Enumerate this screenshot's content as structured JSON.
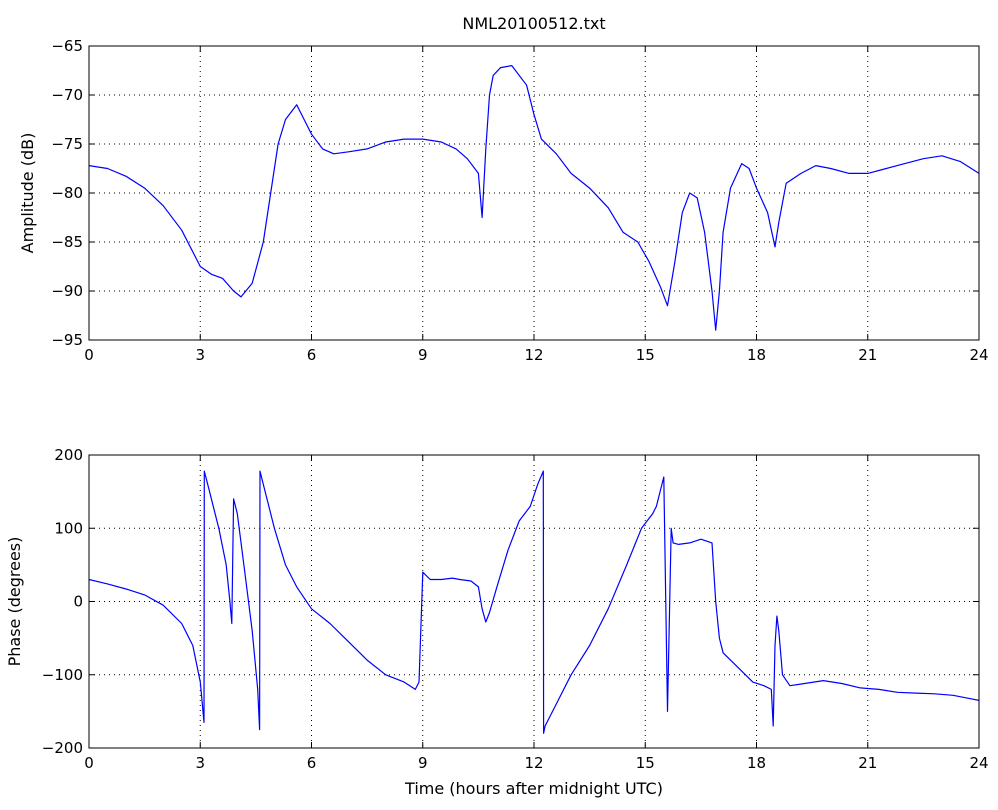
{
  "figure": {
    "title": "NML20100512.txt"
  },
  "chart_data": [
    {
      "type": "line",
      "title": "NML20100512.txt",
      "xlabel": "",
      "ylabel": "Amplitude (dB)",
      "xlim": [
        0,
        24
      ],
      "ylim": [
        -95,
        -65
      ],
      "xticks": [
        "0",
        "3",
        "6",
        "9",
        "12",
        "15",
        "18",
        "21",
        "24"
      ],
      "yticks": [
        "-95",
        "-90",
        "-85",
        "-80",
        "-75",
        "-70",
        "-65"
      ],
      "grid": true,
      "line_color": "#0000ff",
      "series": [
        {
          "x": [
            0,
            0.5,
            1,
            1.5,
            2,
            2.5,
            3,
            3.3,
            3.6,
            3.9,
            4.1,
            4.4,
            4.7,
            4.9,
            5.1,
            5.3,
            5.6,
            5.8,
            6.0,
            6.3,
            6.6,
            7.0,
            7.5,
            8.0,
            8.5,
            9.0,
            9.5,
            9.9,
            10.2,
            10.5,
            10.6,
            10.7,
            10.8,
            10.9,
            11.1,
            11.4,
            11.8,
            12.0,
            12.2,
            12.6,
            13.0,
            13.5,
            14.0,
            14.4,
            14.8,
            15.1,
            15.4,
            15.6,
            15.8,
            16.0,
            16.2,
            16.4,
            16.6,
            16.8,
            16.9,
            17.0,
            17.1,
            17.3,
            17.6,
            17.8,
            18.0,
            18.3,
            18.5,
            18.6,
            18.8,
            19.2,
            19.6,
            20.0,
            20.5,
            21.0,
            21.5,
            22.0,
            22.5,
            23.0,
            23.5,
            24.0
          ],
          "y": [
            -77.2,
            -77.5,
            -78.3,
            -79.5,
            -81.3,
            -83.8,
            -87.5,
            -88.3,
            -88.7,
            -90.0,
            -90.6,
            -89.2,
            -85.0,
            -80.0,
            -75.0,
            -72.5,
            -71.0,
            -72.5,
            -74.0,
            -75.5,
            -76.0,
            -75.8,
            -75.5,
            -74.8,
            -74.5,
            -74.5,
            -74.8,
            -75.5,
            -76.5,
            -78.0,
            -82.5,
            -75.5,
            -70.0,
            -68.0,
            -67.2,
            -67.0,
            -69.0,
            -72.0,
            -74.5,
            -76.0,
            -78.0,
            -79.5,
            -81.5,
            -84.0,
            -85.0,
            -87.0,
            -89.5,
            -91.5,
            -87.0,
            -82.0,
            -80.0,
            -80.5,
            -84.0,
            -90.0,
            -94.0,
            -90.0,
            -84.0,
            -79.5,
            -77.0,
            -77.5,
            -79.5,
            -82.0,
            -85.5,
            -83.0,
            -79.0,
            -78.0,
            -77.2,
            -77.5,
            -78.0,
            -78.0,
            -77.5,
            -77.0,
            -76.5,
            -76.2,
            -76.8,
            -78.0
          ]
        }
      ]
    },
    {
      "type": "line",
      "title": "",
      "xlabel": "Time (hours after midnight UTC)",
      "ylabel": "Phase (degrees)",
      "xlim": [
        0,
        24
      ],
      "ylim": [
        -200,
        200
      ],
      "xticks": [
        "0",
        "3",
        "6",
        "9",
        "12",
        "15",
        "18",
        "21",
        "24"
      ],
      "yticks": [
        "-200",
        "-100",
        "0",
        "100",
        "200"
      ],
      "grid": true,
      "line_color": "#0000ff",
      "series": [
        {
          "x": [
            0,
            0.5,
            1,
            1.5,
            2,
            2.5,
            2.8,
            3.0,
            3.1,
            3.11,
            3.2,
            3.5,
            3.7,
            3.8,
            3.85,
            3.9,
            4.0,
            4.2,
            4.4,
            4.55,
            4.6,
            4.61,
            4.7,
            5.0,
            5.3,
            5.6,
            6.0,
            6.5,
            7.0,
            7.5,
            8.0,
            8.5,
            8.8,
            8.9,
            9.0,
            9.2,
            9.5,
            9.8,
            10.0,
            10.3,
            10.5,
            10.6,
            10.7,
            10.8,
            11.0,
            11.3,
            11.6,
            11.9,
            12.1,
            12.25,
            12.26,
            12.3,
            12.6,
            13.0,
            13.5,
            14.0,
            14.5,
            14.9,
            15.2,
            15.3,
            15.4,
            15.5,
            15.6,
            15.7,
            15.75,
            15.9,
            16.2,
            16.5,
            16.8,
            16.9,
            17.0,
            17.1,
            17.5,
            17.9,
            18.2,
            18.4,
            18.45,
            18.5,
            18.55,
            18.6,
            18.7,
            18.9,
            19.3,
            19.8,
            20.3,
            20.8,
            21.3,
            21.8,
            22.3,
            22.8,
            23.3,
            23.7,
            24.0
          ],
          "y": [
            30,
            24,
            17,
            9,
            -5,
            -30,
            -60,
            -110,
            -165,
            178,
            160,
            100,
            50,
            0,
            -30,
            140,
            120,
            40,
            -40,
            -120,
            -175,
            178,
            160,
            100,
            50,
            20,
            -10,
            -30,
            -55,
            -80,
            -100,
            -110,
            -120,
            -110,
            40,
            30,
            30,
            32,
            30,
            28,
            20,
            -10,
            -28,
            -15,
            20,
            70,
            110,
            130,
            160,
            178,
            -180,
            -170,
            -140,
            -100,
            -60,
            -10,
            50,
            100,
            120,
            130,
            150,
            170,
            -150,
            100,
            80,
            78,
            80,
            85,
            80,
            0,
            -50,
            -70,
            -90,
            -110,
            -115,
            -120,
            -170,
            -60,
            -20,
            -40,
            -100,
            -115,
            -112,
            -108,
            -112,
            -118,
            -120,
            -124,
            -125,
            -126,
            -128,
            -132,
            -135
          ]
        }
      ]
    }
  ]
}
